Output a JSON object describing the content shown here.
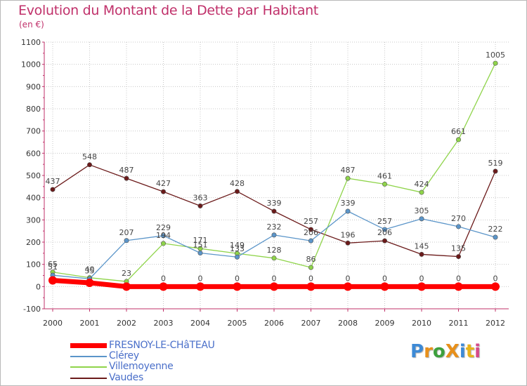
{
  "chart_data": {
    "type": "line",
    "title": "Evolution du Montant de la Dette par Habitant",
    "unit_label": "(en €)",
    "x": [
      "2000",
      "2001",
      "2002",
      "2003",
      "2004",
      "2005",
      "2006",
      "2007",
      "2008",
      "2009",
      "2010",
      "2011",
      "2012"
    ],
    "ylim": [
      -100,
      1100
    ],
    "yticks": [
      "-100",
      "0",
      "100",
      "200",
      "300",
      "400",
      "500",
      "600",
      "700",
      "800",
      "900",
      "1000",
      "1100"
    ],
    "grid": true,
    "legend_position": "bottom-left",
    "series": [
      {
        "name": "FRESNOY-LE-CHâTEAU",
        "color": "#ff0000",
        "values": [
          28,
          17,
          0,
          0,
          0,
          0,
          0,
          0,
          0,
          0,
          0,
          0,
          0
        ],
        "labels": [
          "",
          "",
          "",
          "0",
          "0",
          "0",
          "0",
          "0",
          "0",
          "0",
          "0",
          "0",
          "0"
        ]
      },
      {
        "name": "Clérey",
        "color": "#5b95c9",
        "values": [
          51,
          35,
          207,
          229,
          151,
          133,
          232,
          206,
          339,
          257,
          305,
          270,
          222
        ],
        "labels": [
          "51",
          "35",
          "207",
          "229",
          "151",
          "133",
          "232",
          "206",
          "339",
          "257",
          "305",
          "270",
          "222"
        ]
      },
      {
        "name": "Villemoyenne",
        "color": "#8fd44a",
        "values": [
          65,
          40,
          23,
          194,
          171,
          149,
          128,
          86,
          487,
          461,
          424,
          661,
          1005
        ],
        "labels": [
          "65",
          "40",
          "23",
          "194",
          "171",
          "149",
          "128",
          "86",
          "487",
          "461",
          "424",
          "661",
          "1005"
        ]
      },
      {
        "name": "Vaudes",
        "color": "#6b1a1a",
        "values": [
          437,
          548,
          487,
          427,
          363,
          428,
          339,
          257,
          196,
          206,
          145,
          135,
          519
        ],
        "labels": [
          "437",
          "548",
          "487",
          "427",
          "363",
          "428",
          "339",
          "257",
          "196",
          "206",
          "145",
          "135",
          "519"
        ]
      }
    ]
  },
  "logo": {
    "text": "ProXiti",
    "letters": [
      "P",
      "r",
      "o",
      "X",
      "i",
      "t",
      "i"
    ],
    "colors": [
      "#3d8ad6",
      "#e8901a",
      "#3da03d",
      "#e8901a",
      "#3d8ad6",
      "#e8b41a",
      "#d64a8a"
    ]
  }
}
